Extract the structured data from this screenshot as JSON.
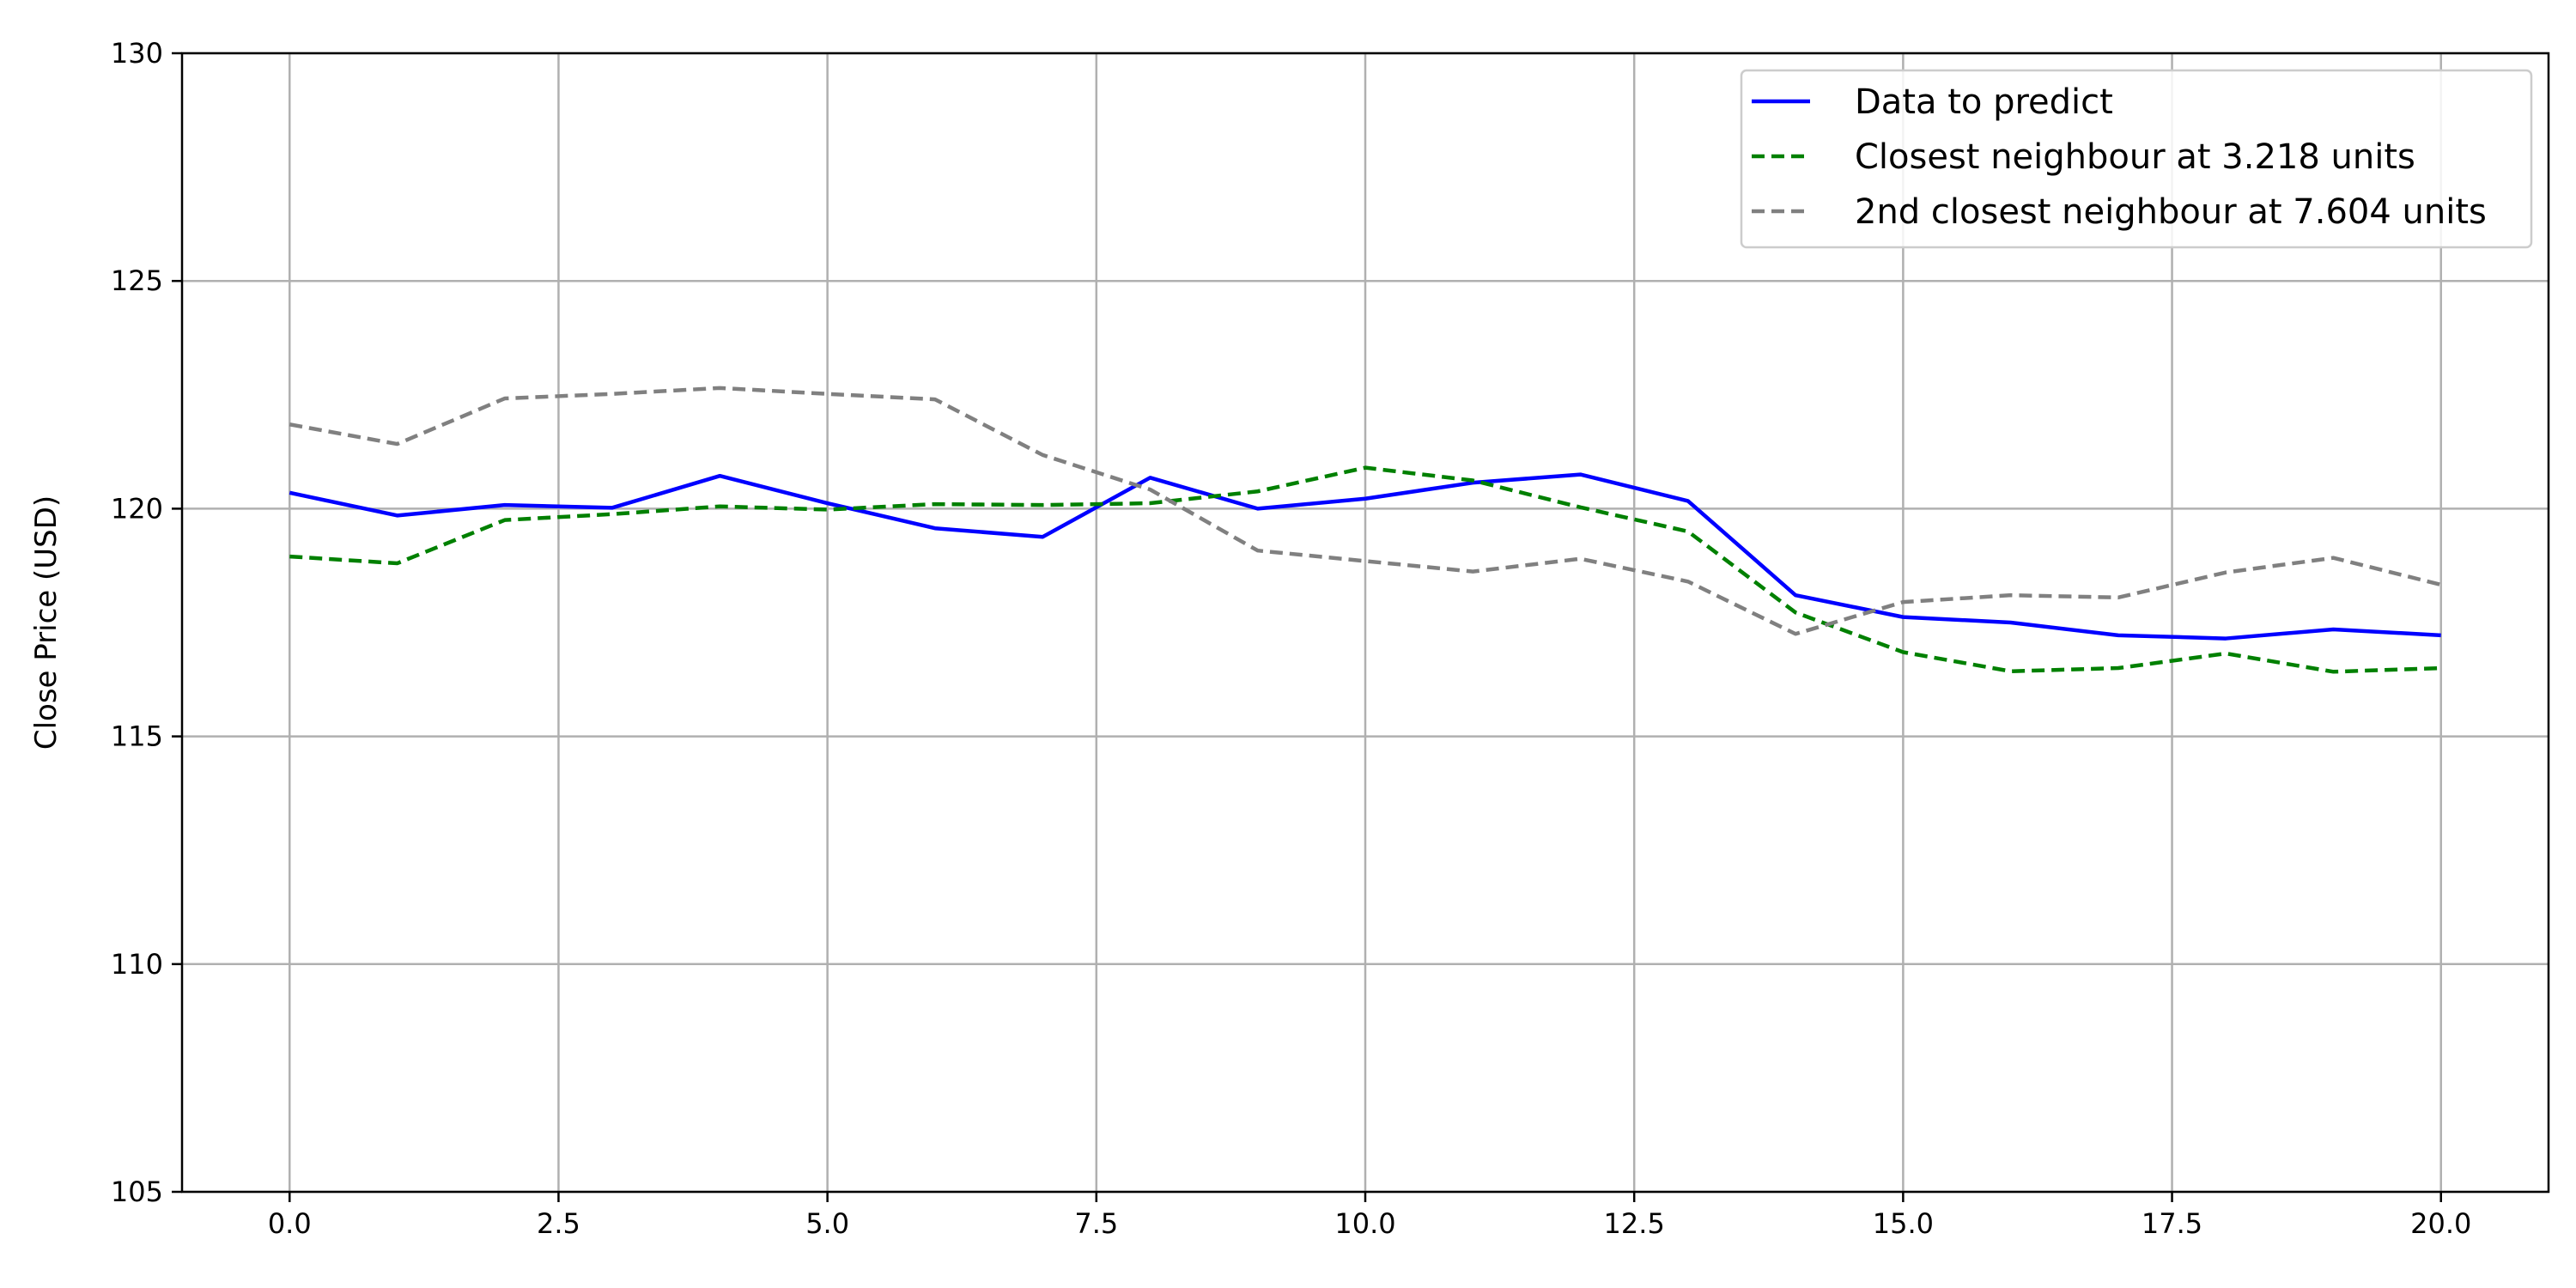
{
  "chart_data": {
    "type": "line",
    "title": "",
    "xlabel": "",
    "ylabel": "Close Price (USD)",
    "xlim": [
      -1,
      21
    ],
    "ylim": [
      105,
      130
    ],
    "x_ticks": [
      0,
      2.5,
      5,
      7.5,
      10,
      12.5,
      15,
      17.5,
      20
    ],
    "x_tick_labels": [
      "0.0",
      "2.5",
      "5.0",
      "7.5",
      "10.0",
      "12.5",
      "15.0",
      "17.5",
      "20.0"
    ],
    "y_ticks": [
      105,
      110,
      115,
      120,
      125,
      130
    ],
    "y_tick_labels": [
      "105",
      "110",
      "115",
      "120",
      "125",
      "130"
    ],
    "grid": true,
    "legend_position": "top-right",
    "x": [
      0,
      1,
      2,
      3,
      4,
      5,
      6,
      7,
      8,
      9,
      10,
      11,
      12,
      13,
      14,
      15,
      16,
      17,
      18,
      19,
      20
    ],
    "series": [
      {
        "name": "Data to predict",
        "color": "#0000ff",
        "style": "solid",
        "values": [
          120.35,
          119.85,
          120.08,
          120.02,
          120.72,
          120.12,
          119.57,
          119.38,
          120.68,
          120.0,
          120.22,
          120.57,
          120.75,
          120.17,
          118.1,
          117.62,
          117.5,
          117.22,
          117.15,
          117.35,
          117.22
        ]
      },
      {
        "name": "Closest neighbour at 3.218 units",
        "color": "#008000",
        "style": "dashed",
        "values": [
          118.95,
          118.8,
          119.75,
          119.88,
          120.05,
          119.98,
          120.1,
          120.08,
          120.12,
          120.38,
          120.9,
          120.62,
          120.03,
          119.5,
          117.72,
          116.85,
          116.43,
          116.5,
          116.82,
          116.42,
          116.5
        ]
      },
      {
        "name": "2nd closest neighbour at 7.604 units",
        "color": "#808080",
        "style": "dashed",
        "values": [
          121.85,
          121.42,
          122.42,
          122.52,
          122.65,
          122.52,
          122.4,
          121.18,
          120.42,
          119.08,
          118.85,
          118.62,
          118.9,
          118.4,
          117.25,
          117.95,
          118.1,
          118.05,
          118.6,
          118.92,
          118.33
        ]
      }
    ]
  }
}
